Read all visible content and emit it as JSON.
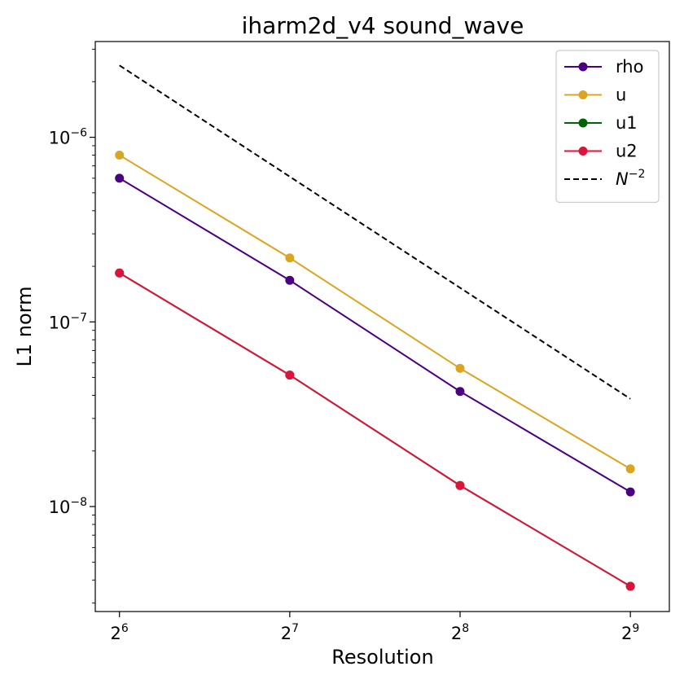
{
  "chart_data": {
    "type": "line",
    "title": "iharm2d_v4 sound_wave",
    "xlabel": "Resolution",
    "ylabel": "L1 norm",
    "x_scale": "log2",
    "y_scale": "log10",
    "x": [
      64,
      128,
      256,
      512
    ],
    "xlim": [
      58,
      600
    ],
    "ylim": [
      2.7e-09,
      3.3e-06
    ],
    "x_ticks": [
      {
        "value": 64,
        "base": "2",
        "exp": "6"
      },
      {
        "value": 128,
        "base": "2",
        "exp": "7"
      },
      {
        "value": 256,
        "base": "2",
        "exp": "8"
      },
      {
        "value": 512,
        "base": "2",
        "exp": "9"
      }
    ],
    "y_ticks": [
      {
        "value": 1e-06,
        "base": "10",
        "exp": "−6"
      },
      {
        "value": 1e-07,
        "base": "10",
        "exp": "−7"
      },
      {
        "value": 1e-08,
        "base": "10",
        "exp": "−8"
      }
    ],
    "grid": false,
    "legend_position": "top-right",
    "series": [
      {
        "name": "rho",
        "color": "#4b0082",
        "style": "solid",
        "marker": "circle",
        "values": [
          6e-07,
          1.68e-07,
          4.2e-08,
          1.2e-08
        ]
      },
      {
        "name": "u",
        "color": "#daa520",
        "style": "solid",
        "marker": "circle",
        "values": [
          8e-07,
          2.22e-07,
          5.6e-08,
          1.6e-08
        ]
      },
      {
        "name": "u1",
        "color": "#006400",
        "style": "solid",
        "marker": "circle",
        "values": [
          1.84e-07,
          5.15e-08,
          1.3e-08,
          3.7e-09
        ]
      },
      {
        "name": "u2",
        "color": "#dc143c",
        "style": "solid",
        "marker": "circle",
        "values": [
          1.84e-07,
          5.15e-08,
          1.3e-08,
          3.7e-09
        ]
      },
      {
        "name": "N",
        "name_sup": "−2",
        "color": "#000000",
        "style": "dashed",
        "marker": "none",
        "values": [
          2.45e-06,
          6.12e-07,
          1.53e-07,
          3.83e-08
        ]
      }
    ]
  }
}
